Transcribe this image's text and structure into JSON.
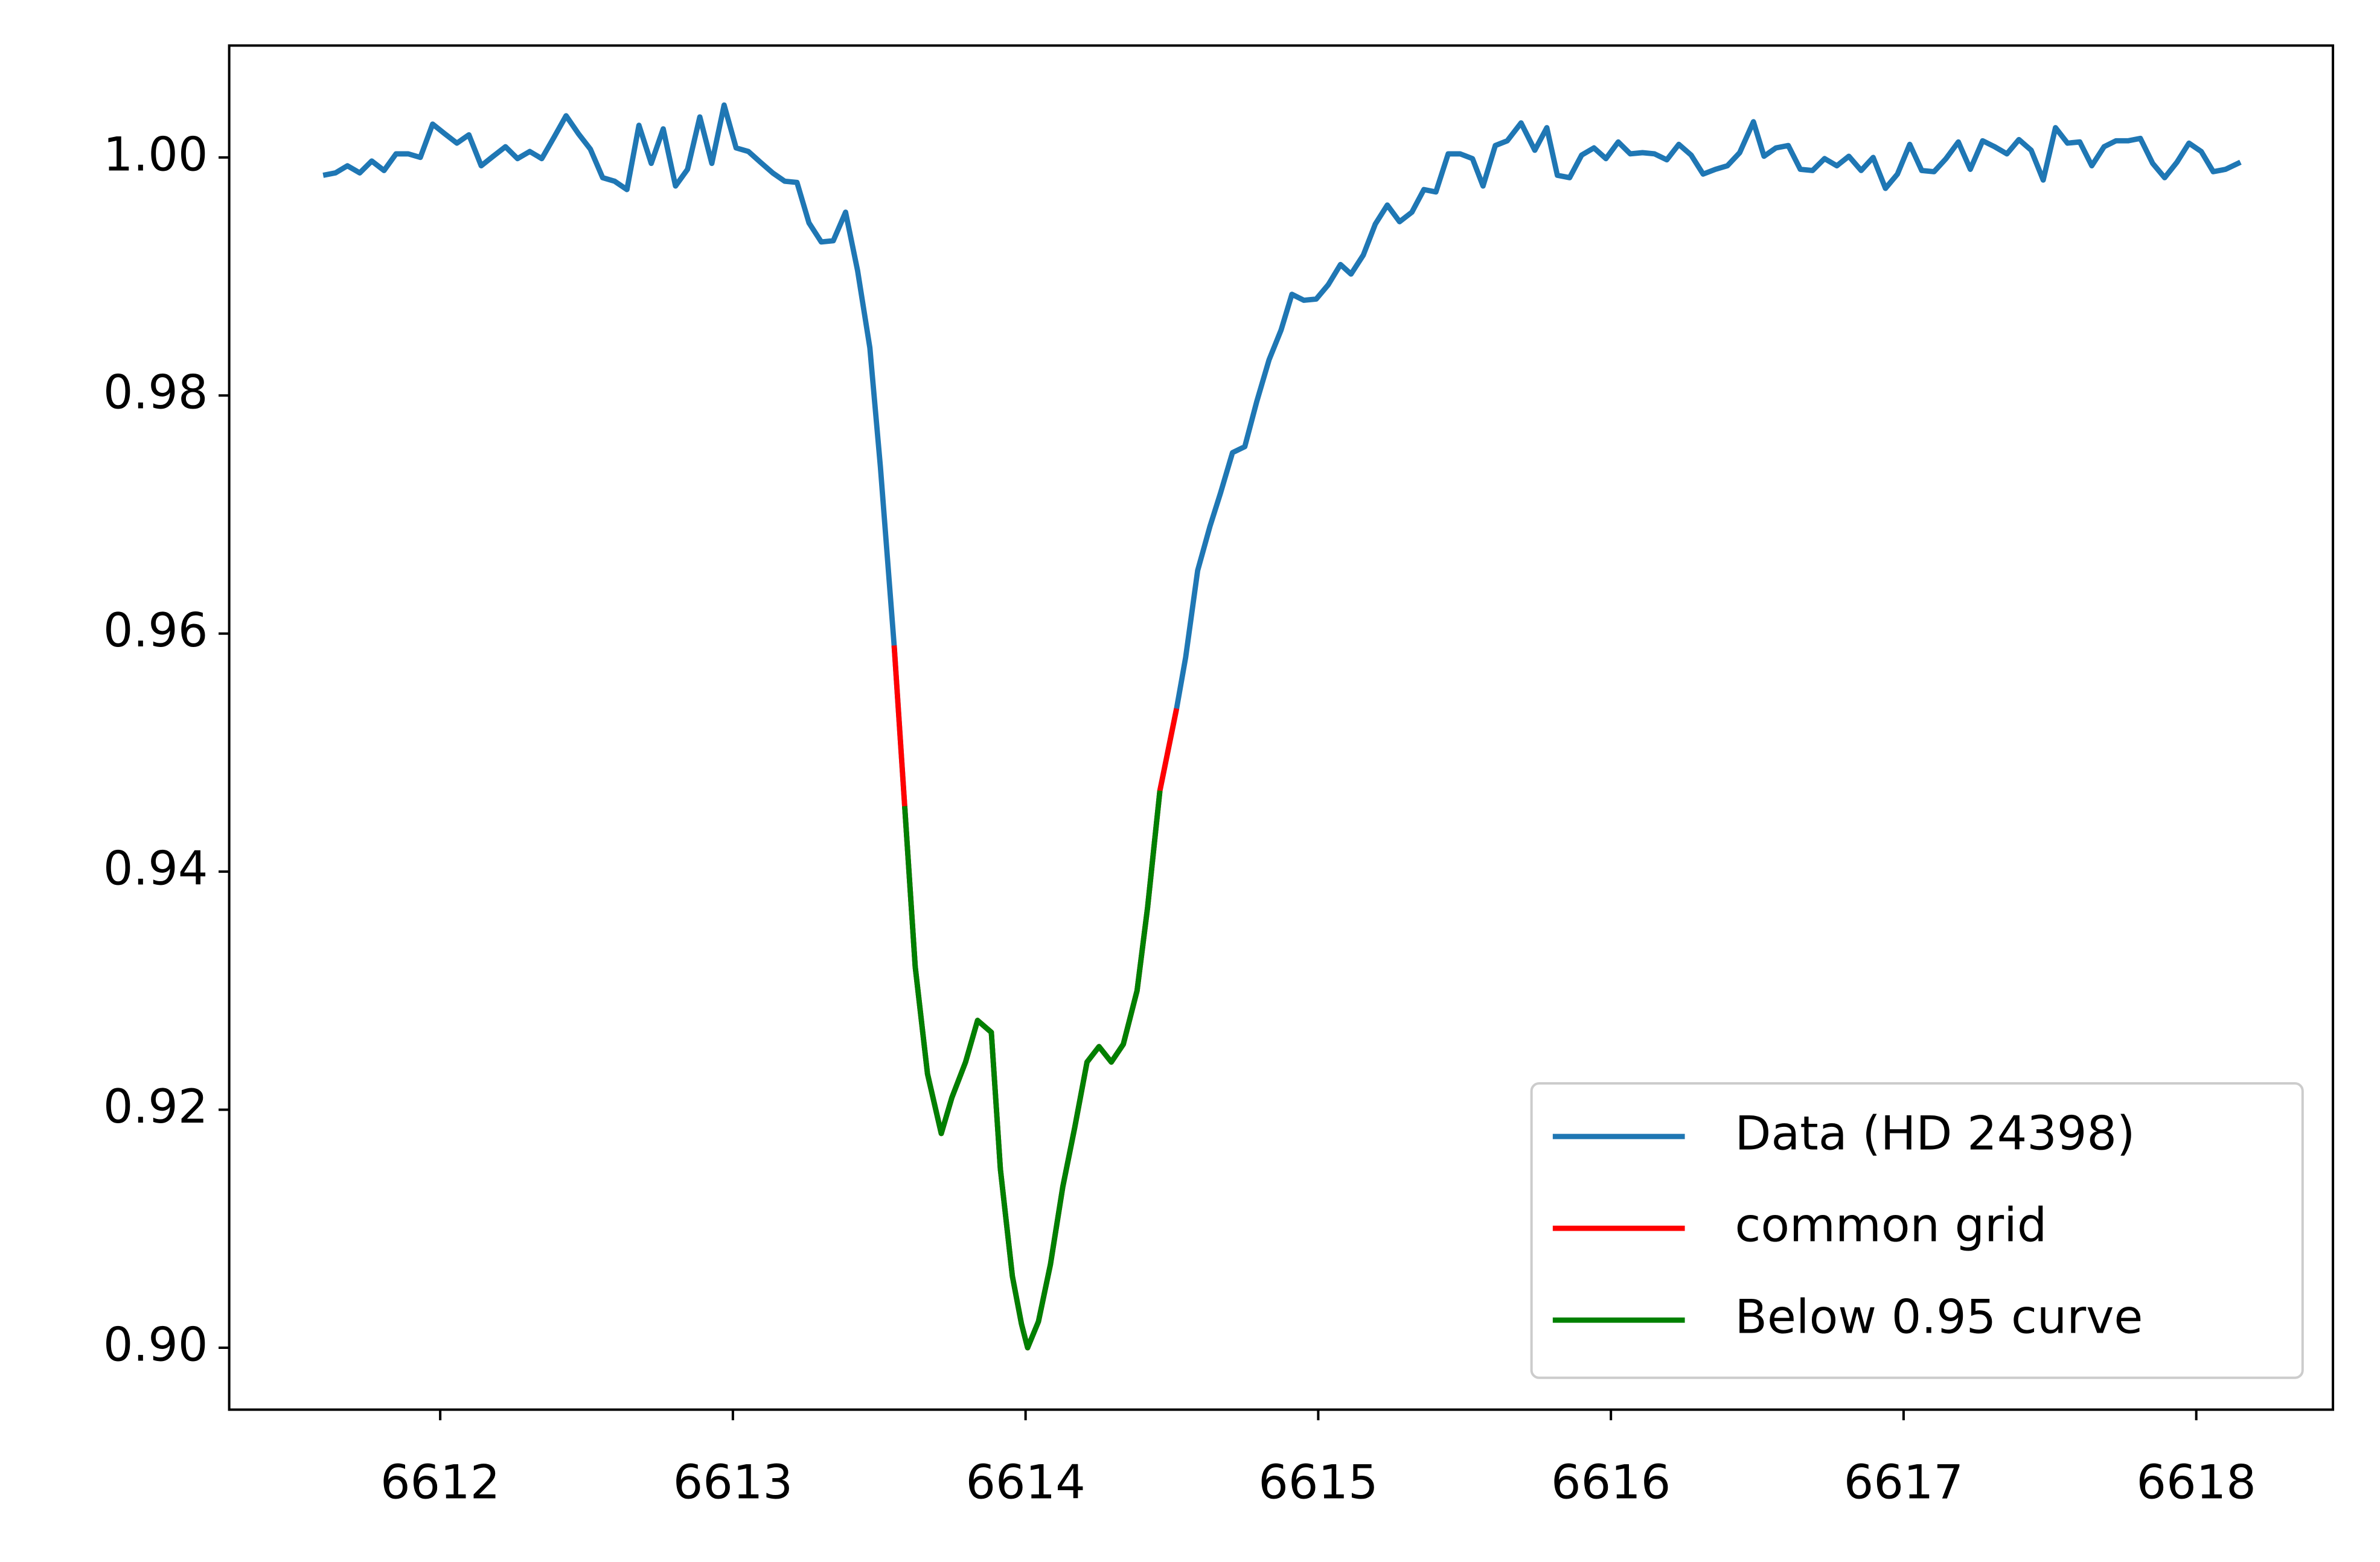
{
  "chart_data": {
    "type": "line",
    "x": [
      6611.6,
      6611.642,
      6611.683,
      6611.725,
      6611.766,
      6611.808,
      6611.849,
      6611.891,
      6611.932,
      6611.974,
      6612.015,
      6612.057,
      6612.098,
      6612.14,
      6612.181,
      6612.223,
      6612.264,
      6612.306,
      6612.347,
      6612.389,
      6612.43,
      6612.472,
      6612.513,
      6612.555,
      6612.596,
      6612.638,
      6612.679,
      6612.721,
      6612.762,
      6612.804,
      6612.845,
      6612.887,
      6612.928,
      6612.97,
      6613.011,
      6613.053,
      6613.094,
      6613.136,
      6613.177,
      6613.219,
      6613.26,
      6613.302,
      6613.343,
      6613.385,
      6613.426,
      6613.468,
      6613.504,
      6613.551,
      6613.587,
      6613.623,
      6613.665,
      6613.712,
      6613.748,
      6613.795,
      6613.836,
      6613.883,
      6613.914,
      6613.955,
      6613.986,
      6614.007,
      6614.044,
      6614.085,
      6614.127,
      6614.168,
      6614.21,
      6614.251,
      6614.293,
      6614.334,
      6614.381,
      6614.417,
      6614.459,
      6614.516,
      6614.547,
      6614.588,
      6614.63,
      6614.666,
      6614.707,
      6614.749,
      6614.79,
      6614.832,
      6614.873,
      6614.91,
      6614.951,
      6614.993,
      6615.034,
      6615.076,
      6615.112,
      6615.154,
      6615.195,
      6615.236,
      6615.278,
      6615.32,
      6615.361,
      6615.402,
      6615.444,
      6615.485,
      6615.527,
      6615.563,
      6615.605,
      6615.646,
      6615.693,
      6615.74,
      6615.781,
      6615.817,
      6615.859,
      6615.9,
      6615.942,
      6615.983,
      6616.025,
      6616.066,
      6616.108,
      6616.149,
      6616.191,
      6616.232,
      6616.274,
      6616.315,
      6616.357,
      6616.398,
      6616.44,
      6616.487,
      6616.523,
      6616.564,
      6616.606,
      6616.647,
      6616.689,
      6616.73,
      6616.772,
      6616.813,
      6616.855,
      6616.896,
      6616.938,
      6616.979,
      6617.021,
      6617.062,
      6617.104,
      6617.145,
      6617.187,
      6617.228,
      6617.27,
      6617.311,
      6617.353,
      6617.394,
      6617.436,
      6617.477,
      6617.519,
      6617.56,
      6617.602,
      6617.643,
      6617.685,
      6617.726,
      6617.768,
      6617.809,
      6617.851,
      6617.892,
      6617.934,
      6617.975,
      6618.017,
      6618.058,
      6618.1,
      6618.151
    ],
    "series": [
      {
        "name": "Data (HD 24398)",
        "color": "#1f77b4",
        "values": [
          0.9985,
          0.9987,
          0.9993,
          0.9987,
          0.9997,
          0.9989,
          1.0003,
          1.0003,
          1.0,
          1.0028,
          1.002,
          1.0012,
          1.0019,
          0.9993,
          1.0001,
          1.0009,
          0.9999,
          1.0005,
          0.9999,
          1.0017,
          1.0035,
          1.002,
          1.0007,
          0.9983,
          0.998,
          0.9973,
          1.0027,
          0.9995,
          1.0024,
          0.9976,
          0.999,
          1.0034,
          0.9995,
          1.0044,
          1.0008,
          1.0005,
          0.9996,
          0.9987,
          0.998,
          0.9979,
          0.9945,
          0.9929,
          0.993,
          0.9954,
          0.9905,
          0.984,
          0.974,
          0.959,
          0.9455,
          0.932,
          0.923,
          0.918,
          0.921,
          0.924,
          0.9275,
          0.9265,
          0.915,
          0.906,
          0.902,
          0.9,
          0.9022,
          0.907,
          0.9135,
          0.9185,
          0.924,
          0.9253,
          0.924,
          0.9255,
          0.93,
          0.937,
          0.9468,
          0.9537,
          0.958,
          0.9653,
          0.969,
          0.9718,
          0.9752,
          0.9757,
          0.9795,
          0.983,
          0.9855,
          0.9885,
          0.988,
          0.9881,
          0.9893,
          0.991,
          0.9902,
          0.9918,
          0.9944,
          0.996,
          0.9946,
          0.9954,
          0.9973,
          0.9971,
          1.0003,
          1.0003,
          0.9999,
          0.9976,
          1.001,
          1.0014,
          1.0029,
          1.0006,
          1.0025,
          0.9985,
          0.9983,
          1.0002,
          1.0008,
          0.9999,
          1.0013,
          1.0003,
          1.0004,
          1.0003,
          0.9998,
          1.0011,
          1.0002,
          0.9986,
          0.999,
          0.9993,
          1.0004,
          1.003,
          1.0001,
          1.0008,
          1.001,
          0.999,
          0.9989,
          0.9999,
          0.9993,
          1.0001,
          0.9989,
          1.0,
          0.9974,
          0.9986,
          1.0011,
          0.9989,
          0.9988,
          0.9999,
          1.0013,
          0.999,
          1.0014,
          1.0009,
          1.0003,
          1.0015,
          1.0006,
          0.9981,
          1.0025,
          1.0012,
          1.0013,
          0.9993,
          1.0009,
          1.0014,
          1.0014,
          1.0016,
          0.9995,
          0.9983,
          0.9996,
          1.0012,
          1.0005,
          0.9988,
          0.999,
          0.9996
        ]
      },
      {
        "name": "common grid",
        "color": "#ff0000",
        "values": [
          null,
          null,
          null,
          null,
          null,
          null,
          null,
          null,
          null,
          null,
          null,
          null,
          null,
          null,
          null,
          null,
          null,
          null,
          null,
          null,
          null,
          null,
          null,
          null,
          null,
          null,
          null,
          null,
          null,
          null,
          null,
          null,
          null,
          null,
          null,
          null,
          null,
          null,
          null,
          null,
          null,
          null,
          null,
          null,
          null,
          null,
          null,
          0.959,
          0.9455,
          0.932,
          0.923,
          0.918,
          0.921,
          0.924,
          0.9275,
          0.9265,
          0.915,
          0.906,
          0.902,
          0.9,
          0.9022,
          0.907,
          0.9135,
          0.9185,
          0.924,
          0.9253,
          0.924,
          0.9255,
          0.93,
          0.937,
          0.9468,
          0.9537,
          null,
          null,
          null,
          null,
          null,
          null,
          null,
          null,
          null,
          null,
          null,
          null,
          null,
          null,
          null,
          null,
          null,
          null,
          null,
          null,
          null,
          null,
          null,
          null,
          null,
          null,
          null,
          null,
          null,
          null,
          null,
          null,
          null,
          null,
          null,
          null,
          null,
          null,
          null,
          null,
          null,
          null,
          null,
          null,
          null,
          null,
          null,
          null,
          null,
          null,
          null,
          null,
          null,
          null,
          null,
          null,
          null,
          null,
          null,
          null,
          null,
          null,
          null,
          null,
          null,
          null,
          null,
          null,
          null,
          null,
          null,
          null,
          null,
          null,
          null,
          null,
          null,
          null,
          null,
          null,
          null,
          null,
          null,
          null,
          null,
          null,
          null,
          null
        ]
      },
      {
        "name": "Below 0.95 curve",
        "color": "#008000",
        "values": [
          null,
          null,
          null,
          null,
          null,
          null,
          null,
          null,
          null,
          null,
          null,
          null,
          null,
          null,
          null,
          null,
          null,
          null,
          null,
          null,
          null,
          null,
          null,
          null,
          null,
          null,
          null,
          null,
          null,
          null,
          null,
          null,
          null,
          null,
          null,
          null,
          null,
          null,
          null,
          null,
          null,
          null,
          null,
          null,
          null,
          null,
          null,
          null,
          0.9455,
          0.932,
          0.923,
          0.918,
          0.921,
          0.924,
          0.9275,
          0.9265,
          0.915,
          0.906,
          0.902,
          0.9,
          0.9022,
          0.907,
          0.9135,
          0.9185,
          0.924,
          0.9253,
          0.924,
          0.9255,
          0.93,
          0.937,
          0.9468,
          null,
          null,
          null,
          null,
          null,
          null,
          null,
          null,
          null,
          null,
          null,
          null,
          null,
          null,
          null,
          null,
          null,
          null,
          null,
          null,
          null,
          null,
          null,
          null,
          null,
          null,
          null,
          null,
          null,
          null,
          null,
          null,
          null,
          null,
          null,
          null,
          null,
          null,
          null,
          null,
          null,
          null,
          null,
          null,
          null,
          null,
          null,
          null,
          null,
          null,
          null,
          null,
          null,
          null,
          null,
          null,
          null,
          null,
          null,
          null,
          null,
          null,
          null,
          null,
          null,
          null,
          null,
          null,
          null,
          null,
          null,
          null,
          null,
          null,
          null,
          null,
          null,
          null,
          null,
          null,
          null,
          null,
          null,
          null,
          null,
          null,
          null,
          null,
          null
        ]
      }
    ],
    "xlim": [
      6611.279,
      6618.467
    ],
    "ylim": [
      0.8948,
      1.0094
    ],
    "xticks": [
      6612,
      6613,
      6614,
      6615,
      6616,
      6617,
      6618
    ],
    "yticks": [
      {
        "value": 0.9,
        "label": "0.90"
      },
      0.92,
      0.94,
      0.96,
      0.98,
      {
        "value": 1.0,
        "label": "1.00"
      }
    ],
    "grid": false,
    "legend": "lower right"
  }
}
